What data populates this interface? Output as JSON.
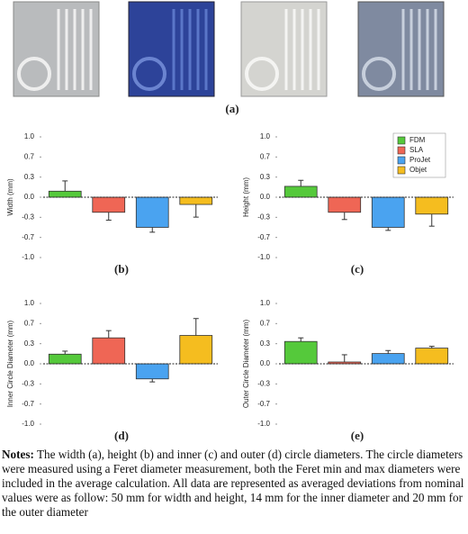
{
  "panel_a_label": "(a)",
  "chart_data": [
    {
      "type": "bar",
      "label": "(b)",
      "ylabel": "Width (mm)",
      "values": [
        0.1,
        -0.25,
        -0.5,
        -0.12
      ],
      "errors": [
        0.17,
        0.13,
        0.08,
        0.21
      ],
      "colors": [
        "#55c93b",
        "#ef6655",
        "#4aa3f0",
        "#f5bd1f"
      ],
      "ylim": [
        -1,
        1
      ],
      "yticks": [
        {
          "value": -1,
          "label": "-1.0"
        },
        {
          "value": -0.6667,
          "label": "-0.7"
        },
        {
          "value": -0.3333,
          "label": "-0.3"
        },
        {
          "value": 0,
          "label": "0.0"
        },
        {
          "value": 0.3333,
          "label": "0.3"
        },
        {
          "value": 0.6667,
          "label": "0.7"
        },
        {
          "value": 1,
          "label": "1.0"
        }
      ]
    },
    {
      "type": "bar",
      "label": "(c)",
      "ylabel": "Height (mm)",
      "values": [
        0.18,
        -0.25,
        -0.5,
        -0.28
      ],
      "errors": [
        0.1,
        0.12,
        0.05,
        0.2
      ],
      "colors": [
        "#55c93b",
        "#ef6655",
        "#4aa3f0",
        "#f5bd1f"
      ],
      "legend": [
        "FDM",
        "SLA",
        "ProJet",
        "Objet"
      ],
      "ylim": [
        -1,
        1
      ],
      "yticks": [
        {
          "value": -1,
          "label": "-1.0"
        },
        {
          "value": -0.6667,
          "label": "-0.7"
        },
        {
          "value": -0.3333,
          "label": "-0.3"
        },
        {
          "value": 0,
          "label": "0.0"
        },
        {
          "value": 0.3333,
          "label": "0.3"
        },
        {
          "value": 0.6667,
          "label": "0.7"
        },
        {
          "value": 1,
          "label": "1.0"
        }
      ]
    },
    {
      "type": "bar",
      "label": "(d)",
      "ylabel": "Inner Circle Diameter (mm)",
      "values": [
        0.16,
        0.43,
        -0.25,
        0.47
      ],
      "errors": [
        0.05,
        0.12,
        0.05,
        0.28
      ],
      "colors": [
        "#55c93b",
        "#ef6655",
        "#4aa3f0",
        "#f5bd1f"
      ],
      "ylim": [
        -1,
        1
      ],
      "yticks": [
        {
          "value": -1,
          "label": "-1.0"
        },
        {
          "value": -0.6667,
          "label": "-0.7"
        },
        {
          "value": -0.3333,
          "label": "-0.3"
        },
        {
          "value": 0,
          "label": "0.0"
        },
        {
          "value": 0.3333,
          "label": "0.3"
        },
        {
          "value": 0.6667,
          "label": "0.7"
        },
        {
          "value": 1,
          "label": "1.0"
        }
      ]
    },
    {
      "type": "bar",
      "label": "(e)",
      "ylabel": "Outer Circle Diameter (mm)",
      "values": [
        0.37,
        0.03,
        0.17,
        0.26
      ],
      "errors": [
        0.06,
        0.12,
        0.05,
        0.03
      ],
      "colors": [
        "#55c93b",
        "#ef6655",
        "#4aa3f0",
        "#f5bd1f"
      ],
      "ylim": [
        -1,
        1
      ],
      "yticks": [
        {
          "value": -1,
          "label": "-1.0"
        },
        {
          "value": -0.6667,
          "label": "-0.7"
        },
        {
          "value": -0.3333,
          "label": "-0.3"
        },
        {
          "value": 0,
          "label": "0.0"
        },
        {
          "value": 0.3333,
          "label": "0.3"
        },
        {
          "value": 0.6667,
          "label": "0.7"
        },
        {
          "value": 1,
          "label": "1.0"
        }
      ]
    }
  ],
  "notes": {
    "lead": "Notes:",
    "text": " The width (a), height (b) and inner (c) and outer (d) circle diameters. The circle diameters were measured using a Feret diameter measurement, both the Feret min and max diameters were included in the average calculation. All data are represented as averaged deviations from nominal values were as follow: 50 mm for width and height, 14 mm for the inner diameter and 20 mm for the outer diameter"
  }
}
